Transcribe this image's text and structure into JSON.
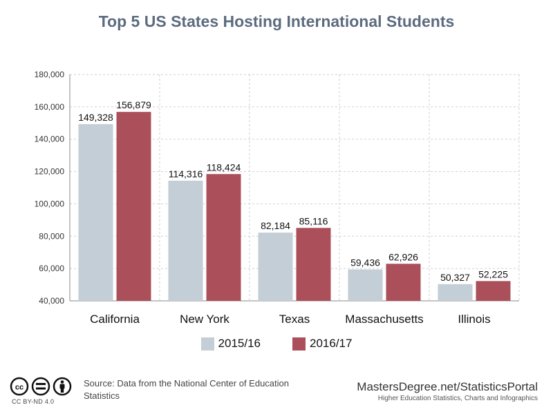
{
  "title": "Top 5 US States Hosting International Students",
  "chart_data": {
    "type": "bar",
    "categories": [
      "California",
      "New York",
      "Texas",
      "Massachusetts",
      "Illinois"
    ],
    "series": [
      {
        "name": "2015/16",
        "values": [
          149328,
          114316,
          82184,
          59436,
          50327
        ],
        "labels": [
          "149,328",
          "114,316",
          "82,184",
          "59,436",
          "50,327"
        ],
        "color": "#c3ced6"
      },
      {
        "name": "2016/17",
        "values": [
          156879,
          118424,
          85116,
          62926,
          52225
        ],
        "labels": [
          "156,879",
          "118,424",
          "85,116",
          "62,926",
          "52,225"
        ],
        "color": "#ab505b"
      }
    ],
    "ylim": [
      40000,
      180000
    ],
    "yticks": [
      40000,
      60000,
      80000,
      100000,
      120000,
      140000,
      160000,
      180000
    ],
    "ytick_labels": [
      "40,000",
      "60,000",
      "80,000",
      "100,000",
      "120,000",
      "140,000",
      "160,000",
      "180,000"
    ],
    "grid": true,
    "legend_position": "bottom"
  },
  "footer": {
    "license": "CC BY-ND 4.0",
    "source": "Source: Data from the National Center of Education Statistics",
    "brand": "MastersDegree.net/StatisticsPortal",
    "tagline": "Higher Education Statistics, Charts and Infographics"
  }
}
